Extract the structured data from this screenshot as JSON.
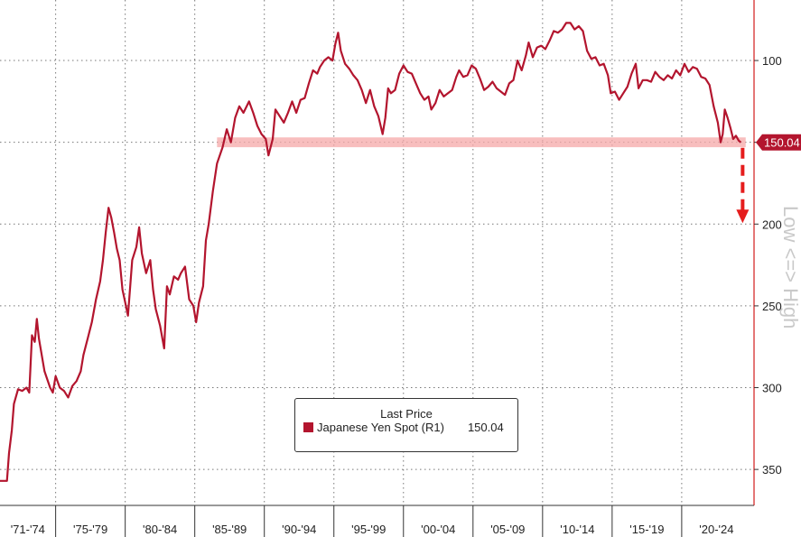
{
  "chart_data": {
    "type": "line",
    "title": "",
    "xlabel": "",
    "ylabel": "",
    "y_axis_inverted": true,
    "ylim": [
      372,
      63
    ],
    "y_ticks": [
      100,
      150,
      200,
      250,
      300,
      350
    ],
    "xlim": [
      1971,
      2025.2
    ],
    "x_tick_labels": [
      "'71-'74",
      "'75-'79",
      "'80-'84",
      "'85-'89",
      "'90-'94",
      "'95-'99",
      "'00-'04",
      "'05-'09",
      "'10-'14",
      "'15-'19",
      "'20-'24"
    ],
    "x_tick_positions": [
      1971,
      1975,
      1980,
      1985,
      1990,
      1995,
      2000,
      2005,
      2010,
      2015,
      2020,
      2025
    ],
    "grid": true,
    "legend_position": "bottom-center",
    "legend": {
      "title": "Last Price",
      "entries": [
        {
          "name": "Japanese Yen Spot  (R1)",
          "value": "150.04"
        }
      ]
    },
    "last_price_label": "150.04",
    "side_label": "Low <=> High",
    "highlight_band": [
      147,
      153
    ],
    "arrow_target": 200,
    "colors": {
      "line": "#b3152e",
      "band": "#f5a8a8",
      "arrow": "#e51d1d",
      "last_label_bg": "#b3152e"
    },
    "series": [
      {
        "name": "Japanese Yen Spot  (R1)",
        "points": [
          [
            1971.0,
            357
          ],
          [
            1971.5,
            357
          ],
          [
            1971.65,
            340
          ],
          [
            1971.85,
            326
          ],
          [
            1972.0,
            310
          ],
          [
            1972.3,
            301
          ],
          [
            1972.6,
            302
          ],
          [
            1972.9,
            300
          ],
          [
            1973.1,
            303
          ],
          [
            1973.3,
            268
          ],
          [
            1973.5,
            272
          ],
          [
            1973.65,
            258
          ],
          [
            1973.8,
            270
          ],
          [
            1974.0,
            280
          ],
          [
            1974.2,
            290
          ],
          [
            1974.4,
            295
          ],
          [
            1974.6,
            300
          ],
          [
            1974.8,
            303
          ],
          [
            1975.0,
            293
          ],
          [
            1975.3,
            300
          ],
          [
            1975.6,
            302
          ],
          [
            1975.9,
            306
          ],
          [
            1976.2,
            299
          ],
          [
            1976.5,
            296
          ],
          [
            1976.8,
            290
          ],
          [
            1977.0,
            280
          ],
          [
            1977.3,
            270
          ],
          [
            1977.6,
            260
          ],
          [
            1977.9,
            246
          ],
          [
            1978.2,
            235
          ],
          [
            1978.4,
            222
          ],
          [
            1978.6,
            205
          ],
          [
            1978.8,
            190
          ],
          [
            1979.0,
            196
          ],
          [
            1979.2,
            205
          ],
          [
            1979.4,
            215
          ],
          [
            1979.6,
            222
          ],
          [
            1979.8,
            240
          ],
          [
            1980.0,
            248
          ],
          [
            1980.2,
            256
          ],
          [
            1980.5,
            222
          ],
          [
            1980.8,
            214
          ],
          [
            1981.0,
            202
          ],
          [
            1981.2,
            218
          ],
          [
            1981.5,
            230
          ],
          [
            1981.8,
            222
          ],
          [
            1982.0,
            240
          ],
          [
            1982.2,
            252
          ],
          [
            1982.5,
            262
          ],
          [
            1982.8,
            276
          ],
          [
            1983.0,
            238
          ],
          [
            1983.2,
            243
          ],
          [
            1983.5,
            232
          ],
          [
            1983.8,
            234
          ],
          [
            1984.0,
            230
          ],
          [
            1984.3,
            226
          ],
          [
            1984.6,
            246
          ],
          [
            1984.9,
            250
          ],
          [
            1985.1,
            260
          ],
          [
            1985.3,
            248
          ],
          [
            1985.6,
            238
          ],
          [
            1985.8,
            210
          ],
          [
            1986.0,
            200
          ],
          [
            1986.3,
            180
          ],
          [
            1986.6,
            163
          ],
          [
            1987.0,
            153
          ],
          [
            1987.3,
            142
          ],
          [
            1987.6,
            150
          ],
          [
            1987.9,
            135
          ],
          [
            1988.2,
            128
          ],
          [
            1988.5,
            132
          ],
          [
            1988.9,
            125
          ],
          [
            1989.2,
            132
          ],
          [
            1989.5,
            140
          ],
          [
            1989.8,
            145
          ],
          [
            1990.1,
            148
          ],
          [
            1990.3,
            158
          ],
          [
            1990.6,
            148
          ],
          [
            1990.8,
            130
          ],
          [
            1991.1,
            134
          ],
          [
            1991.4,
            138
          ],
          [
            1991.7,
            132
          ],
          [
            1992.0,
            125
          ],
          [
            1992.3,
            132
          ],
          [
            1992.6,
            124
          ],
          [
            1992.9,
            123
          ],
          [
            1993.2,
            114
          ],
          [
            1993.5,
            106
          ],
          [
            1993.8,
            108
          ],
          [
            1994.0,
            104
          ],
          [
            1994.3,
            100
          ],
          [
            1994.6,
            98
          ],
          [
            1994.9,
            100
          ],
          [
            1995.1,
            90
          ],
          [
            1995.3,
            83
          ],
          [
            1995.5,
            94
          ],
          [
            1995.8,
            102
          ],
          [
            1996.1,
            105
          ],
          [
            1996.4,
            109
          ],
          [
            1996.7,
            112
          ],
          [
            1997.0,
            118
          ],
          [
            1997.3,
            126
          ],
          [
            1997.6,
            118
          ],
          [
            1997.9,
            128
          ],
          [
            1998.2,
            134
          ],
          [
            1998.5,
            145
          ],
          [
            1998.7,
            135
          ],
          [
            1998.9,
            117
          ],
          [
            1999.1,
            120
          ],
          [
            1999.4,
            118
          ],
          [
            1999.7,
            108
          ],
          [
            2000.0,
            103
          ],
          [
            2000.3,
            107
          ],
          [
            2000.6,
            108
          ],
          [
            2000.9,
            114
          ],
          [
            2001.2,
            120
          ],
          [
            2001.5,
            124
          ],
          [
            2001.8,
            122
          ],
          [
            2002.0,
            130
          ],
          [
            2002.3,
            126
          ],
          [
            2002.6,
            118
          ],
          [
            2002.9,
            122
          ],
          [
            2003.2,
            120
          ],
          [
            2003.5,
            118
          ],
          [
            2003.8,
            110
          ],
          [
            2004.0,
            106
          ],
          [
            2004.3,
            110
          ],
          [
            2004.6,
            109
          ],
          [
            2004.9,
            103
          ],
          [
            2005.2,
            105
          ],
          [
            2005.5,
            111
          ],
          [
            2005.8,
            118
          ],
          [
            2006.1,
            116
          ],
          [
            2006.4,
            113
          ],
          [
            2006.7,
            117
          ],
          [
            2007.0,
            119
          ],
          [
            2007.3,
            121
          ],
          [
            2007.6,
            114
          ],
          [
            2007.9,
            112
          ],
          [
            2008.2,
            100
          ],
          [
            2008.5,
            106
          ],
          [
            2008.8,
            97
          ],
          [
            2009.0,
            89
          ],
          [
            2009.3,
            98
          ],
          [
            2009.6,
            92
          ],
          [
            2009.9,
            91
          ],
          [
            2010.2,
            93
          ],
          [
            2010.5,
            88
          ],
          [
            2010.8,
            82
          ],
          [
            2011.1,
            83
          ],
          [
            2011.4,
            81
          ],
          [
            2011.7,
            77
          ],
          [
            2012.0,
            77
          ],
          [
            2012.3,
            81
          ],
          [
            2012.6,
            79
          ],
          [
            2012.9,
            82
          ],
          [
            2013.2,
            94
          ],
          [
            2013.5,
            99
          ],
          [
            2013.8,
            98
          ],
          [
            2014.1,
            103
          ],
          [
            2014.4,
            102
          ],
          [
            2014.7,
            109
          ],
          [
            2014.9,
            120
          ],
          [
            2015.2,
            119
          ],
          [
            2015.5,
            124
          ],
          [
            2015.8,
            120
          ],
          [
            2016.1,
            116
          ],
          [
            2016.4,
            108
          ],
          [
            2016.7,
            102
          ],
          [
            2016.9,
            117
          ],
          [
            2017.2,
            112
          ],
          [
            2017.5,
            112
          ],
          [
            2017.8,
            113
          ],
          [
            2018.1,
            107
          ],
          [
            2018.4,
            110
          ],
          [
            2018.7,
            112
          ],
          [
            2019.0,
            109
          ],
          [
            2019.3,
            111
          ],
          [
            2019.6,
            106
          ],
          [
            2019.9,
            109
          ],
          [
            2020.2,
            102
          ],
          [
            2020.5,
            107
          ],
          [
            2020.8,
            104
          ],
          [
            2021.1,
            105
          ],
          [
            2021.4,
            110
          ],
          [
            2021.7,
            111
          ],
          [
            2022.0,
            115
          ],
          [
            2022.3,
            128
          ],
          [
            2022.6,
            138
          ],
          [
            2022.8,
            150
          ],
          [
            2022.95,
            145
          ],
          [
            2023.1,
            130
          ],
          [
            2023.3,
            135
          ],
          [
            2023.5,
            141
          ],
          [
            2023.7,
            148
          ],
          [
            2023.9,
            146
          ],
          [
            2024.1,
            149
          ],
          [
            2024.25,
            150.04
          ]
        ]
      }
    ]
  }
}
